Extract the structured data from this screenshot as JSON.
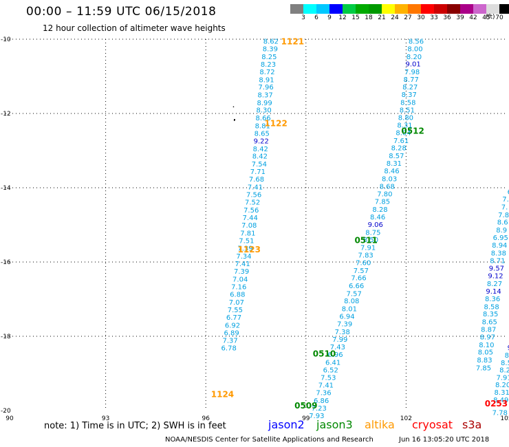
{
  "title": "00:00 – 11:59 UTC 06/15/2018",
  "subtitle": "12 hour collection of altimeter wave heights",
  "legend": {
    "colors": [
      "#808080",
      "#00ffff",
      "#00c8ff",
      "#0000ff",
      "#00cc44",
      "#00aa00",
      "#009900",
      "#ffff00",
      "#ffb300",
      "#ff7700",
      "#ff0000",
      "#cc0000",
      "#880000",
      "#aa0088",
      "#cc66cc",
      "#dddddd",
      "#000000"
    ],
    "labels": [
      "3",
      "6",
      "9",
      "12",
      "15",
      "18",
      "21",
      "24",
      "27",
      "30",
      "33",
      "36",
      "39",
      "42",
      "45",
      "70"
    ],
    "unit": "(ft)"
  },
  "map": {
    "lon_labels": [
      "90",
      "93",
      "96",
      "99",
      "102",
      "105"
    ],
    "lat_labels": [
      "-10",
      "-12",
      "-14",
      "-16",
      "-18",
      "-20"
    ]
  },
  "note": "note:  1) Time is in UTC;  2) SWH is in feet",
  "satellites": [
    {
      "name": "jason2",
      "color": "#0000ff"
    },
    {
      "name": "jason3",
      "color": "#008800"
    },
    {
      "name": "altika",
      "color": "#ff9900"
    },
    {
      "name": "cryosat",
      "color": "#ff0000"
    },
    {
      "name": "s3a",
      "color": "#aa0000"
    }
  ],
  "credit": "NOAA/NESDIS Center for Satellite Applications and Research",
  "timestamp": "Jun 16 13:05:20 UTC 2018",
  "tracks": [
    {
      "id": "altika",
      "color": "#ff9900",
      "labels": [
        {
          "text": "1121",
          "lon": 98.6,
          "lat": -10.05
        },
        {
          "text": "1122",
          "lon": 98.1,
          "lat": -12.25
        },
        {
          "text": "1123",
          "lon": 97.3,
          "lat": -15.65
        },
        {
          "text": "1124",
          "lon": 96.5,
          "lat": -19.55
        }
      ]
    },
    {
      "id": "jason3",
      "color": "#008800",
      "labels": [
        {
          "text": "0512",
          "lon": 102.2,
          "lat": -12.45
        },
        {
          "text": "0511",
          "lon": 100.8,
          "lat": -15.4
        },
        {
          "text": "0510",
          "lon": 99.55,
          "lat": -18.45
        },
        {
          "text": "0509",
          "lon": 99.0,
          "lat": -19.85
        }
      ]
    },
    {
      "id": "cryosat",
      "color": "#ff0000",
      "labels": [
        {
          "text": "0253",
          "lon": 104.7,
          "lat": -19.8
        }
      ]
    }
  ],
  "readings": [
    {
      "lon": 97.95,
      "lat": -10.05,
      "v": "8.62",
      "c": "#00a0e0"
    },
    {
      "lon": 97.93,
      "lat": -10.25,
      "v": "8.39",
      "c": "#00a0e0"
    },
    {
      "lon": 97.9,
      "lat": -10.46,
      "v": "8.25",
      "c": "#00a0e0"
    },
    {
      "lon": 97.87,
      "lat": -10.67,
      "v": "8.23",
      "c": "#00a0e0"
    },
    {
      "lon": 97.84,
      "lat": -10.87,
      "v": "8.72",
      "c": "#00a0e0"
    },
    {
      "lon": 97.82,
      "lat": -11.08,
      "v": "8.91",
      "c": "#00a0e0"
    },
    {
      "lon": 97.8,
      "lat": -11.28,
      "v": "7.96",
      "c": "#00a0e0"
    },
    {
      "lon": 97.78,
      "lat": -11.49,
      "v": "8.37",
      "c": "#00a0e0"
    },
    {
      "lon": 97.76,
      "lat": -11.7,
      "v": "8.99",
      "c": "#00a0e0"
    },
    {
      "lon": 97.74,
      "lat": -11.9,
      "v": "8.30",
      "c": "#00a0e0"
    },
    {
      "lon": 97.72,
      "lat": -12.11,
      "v": "8.66",
      "c": "#00a0e0"
    },
    {
      "lon": 97.7,
      "lat": -12.32,
      "v": "8.81",
      "c": "#00a0e0"
    },
    {
      "lon": 97.68,
      "lat": -12.53,
      "v": "8.65",
      "c": "#00a0e0"
    },
    {
      "lon": 97.66,
      "lat": -12.73,
      "v": "9.22",
      "c": "#0000cc"
    },
    {
      "lon": 97.64,
      "lat": -12.94,
      "v": "8.42",
      "c": "#00a0e0"
    },
    {
      "lon": 97.62,
      "lat": -13.14,
      "v": "8.42",
      "c": "#00a0e0"
    },
    {
      "lon": 97.6,
      "lat": -13.35,
      "v": "7.54",
      "c": "#00a0e0"
    },
    {
      "lon": 97.56,
      "lat": -13.56,
      "v": "7.71",
      "c": "#00a0e0"
    },
    {
      "lon": 97.52,
      "lat": -13.76,
      "v": "7.68",
      "c": "#00a0e0"
    },
    {
      "lon": 97.48,
      "lat": -13.97,
      "v": "7.41",
      "c": "#00a0e0"
    },
    {
      "lon": 97.44,
      "lat": -14.18,
      "v": "7.56",
      "c": "#00a0e0"
    },
    {
      "lon": 97.4,
      "lat": -14.38,
      "v": "7.52",
      "c": "#00a0e0"
    },
    {
      "lon": 97.36,
      "lat": -14.59,
      "v": "7.56",
      "c": "#00a0e0"
    },
    {
      "lon": 97.33,
      "lat": -14.8,
      "v": "7.44",
      "c": "#00a0e0"
    },
    {
      "lon": 97.3,
      "lat": -15.0,
      "v": "7.08",
      "c": "#00a0e0"
    },
    {
      "lon": 97.26,
      "lat": -15.21,
      "v": "7.81",
      "c": "#00a0e0"
    },
    {
      "lon": 97.22,
      "lat": -15.42,
      "v": "7.51",
      "c": "#00a0e0"
    },
    {
      "lon": 97.18,
      "lat": -15.62,
      "v": "7.39",
      "c": "#00a0e0"
    },
    {
      "lon": 97.14,
      "lat": -15.83,
      "v": "7.34",
      "c": "#00a0e0"
    },
    {
      "lon": 97.1,
      "lat": -16.04,
      "v": "7.41",
      "c": "#00a0e0"
    },
    {
      "lon": 97.07,
      "lat": -16.24,
      "v": "7.39",
      "c": "#00a0e0"
    },
    {
      "lon": 97.03,
      "lat": -16.45,
      "v": "7.04",
      "c": "#00a0e0"
    },
    {
      "lon": 96.99,
      "lat": -16.66,
      "v": "7.16",
      "c": "#00a0e0"
    },
    {
      "lon": 96.95,
      "lat": -16.86,
      "v": "6.88",
      "c": "#00a0e0"
    },
    {
      "lon": 96.92,
      "lat": -17.07,
      "v": "7.07",
      "c": "#00a0e0"
    },
    {
      "lon": 96.88,
      "lat": -17.28,
      "v": "7.55",
      "c": "#00a0e0"
    },
    {
      "lon": 96.84,
      "lat": -17.48,
      "v": "6.77",
      "c": "#00a0e0"
    },
    {
      "lon": 96.8,
      "lat": -17.69,
      "v": "6.92",
      "c": "#00a0e0"
    },
    {
      "lon": 96.77,
      "lat": -17.9,
      "v": "6.89",
      "c": "#00a0e0"
    },
    {
      "lon": 96.73,
      "lat": -18.1,
      "v": "7.37",
      "c": "#00a0e0"
    },
    {
      "lon": 96.69,
      "lat": -18.31,
      "v": "6.78",
      "c": "#00a0e0"
    },
    {
      "lon": 102.3,
      "lat": -10.05,
      "v": "8.56",
      "c": "#00a0e0"
    },
    {
      "lon": 102.27,
      "lat": -10.25,
      "v": "8.00",
      "c": "#00a0e0"
    },
    {
      "lon": 102.24,
      "lat": -10.46,
      "v": "8.20",
      "c": "#00a0e0"
    },
    {
      "lon": 102.21,
      "lat": -10.66,
      "v": "9.01",
      "c": "#0000cc"
    },
    {
      "lon": 102.18,
      "lat": -10.87,
      "v": "7.98",
      "c": "#00a0e0"
    },
    {
      "lon": 102.15,
      "lat": -11.07,
      "v": "8.77",
      "c": "#00a0e0"
    },
    {
      "lon": 102.12,
      "lat": -11.28,
      "v": "8.27",
      "c": "#00a0e0"
    },
    {
      "lon": 102.09,
      "lat": -11.48,
      "v": "8.37",
      "c": "#00a0e0"
    },
    {
      "lon": 102.06,
      "lat": -11.69,
      "v": "8.58",
      "c": "#00a0e0"
    },
    {
      "lon": 102.03,
      "lat": -11.9,
      "v": "8.51",
      "c": "#00a0e0"
    },
    {
      "lon": 101.99,
      "lat": -12.1,
      "v": "8.80",
      "c": "#00a0e0"
    },
    {
      "lon": 101.96,
      "lat": -12.31,
      "v": "8.31",
      "c": "#00a0e0"
    },
    {
      "lon": 101.92,
      "lat": -12.51,
      "v": "8.04",
      "c": "#00a0e0"
    },
    {
      "lon": 101.85,
      "lat": -12.72,
      "v": "7.61",
      "c": "#00a0e0"
    },
    {
      "lon": 101.78,
      "lat": -12.92,
      "v": "8.28",
      "c": "#00a0e0"
    },
    {
      "lon": 101.71,
      "lat": -13.13,
      "v": "8.57",
      "c": "#00a0e0"
    },
    {
      "lon": 101.64,
      "lat": -13.33,
      "v": "8.31",
      "c": "#00a0e0"
    },
    {
      "lon": 101.57,
      "lat": -13.54,
      "v": "8.46",
      "c": "#00a0e0"
    },
    {
      "lon": 101.5,
      "lat": -13.75,
      "v": "8.03",
      "c": "#00a0e0"
    },
    {
      "lon": 101.43,
      "lat": -13.95,
      "v": "8.68",
      "c": "#00a0e0"
    },
    {
      "lon": 101.36,
      "lat": -14.16,
      "v": "7.80",
      "c": "#00a0e0"
    },
    {
      "lon": 101.29,
      "lat": -14.36,
      "v": "7.85",
      "c": "#00a0e0"
    },
    {
      "lon": 101.22,
      "lat": -14.57,
      "v": "8.28",
      "c": "#00a0e0"
    },
    {
      "lon": 101.15,
      "lat": -14.78,
      "v": "8.46",
      "c": "#00a0e0"
    },
    {
      "lon": 101.08,
      "lat": -14.98,
      "v": "9.06",
      "c": "#0000cc"
    },
    {
      "lon": 101.01,
      "lat": -15.19,
      "v": "8.75",
      "c": "#00a0e0"
    },
    {
      "lon": 100.94,
      "lat": -15.39,
      "v": "8.50",
      "c": "#00a0e0"
    },
    {
      "lon": 100.86,
      "lat": -15.6,
      "v": "7.91",
      "c": "#00a0e0"
    },
    {
      "lon": 100.79,
      "lat": -15.81,
      "v": "7.83",
      "c": "#00a0e0"
    },
    {
      "lon": 100.72,
      "lat": -16.01,
      "v": "7.60",
      "c": "#00a0e0"
    },
    {
      "lon": 100.65,
      "lat": -16.22,
      "v": "7.57",
      "c": "#00a0e0"
    },
    {
      "lon": 100.58,
      "lat": -16.42,
      "v": "7.66",
      "c": "#00a0e0"
    },
    {
      "lon": 100.51,
      "lat": -16.63,
      "v": "6.66",
      "c": "#00a0e0"
    },
    {
      "lon": 100.44,
      "lat": -16.84,
      "v": "7.57",
      "c": "#00a0e0"
    },
    {
      "lon": 100.37,
      "lat": -17.04,
      "v": "8.08",
      "c": "#00a0e0"
    },
    {
      "lon": 100.3,
      "lat": -17.25,
      "v": "8.01",
      "c": "#00a0e0"
    },
    {
      "lon": 100.23,
      "lat": -17.45,
      "v": "6.94",
      "c": "#00a0e0"
    },
    {
      "lon": 100.16,
      "lat": -17.66,
      "v": "7.39",
      "c": "#00a0e0"
    },
    {
      "lon": 100.09,
      "lat": -17.87,
      "v": "7.38",
      "c": "#00a0e0"
    },
    {
      "lon": 100.02,
      "lat": -18.07,
      "v": "7.99",
      "c": "#00a0e0"
    },
    {
      "lon": 99.95,
      "lat": -18.28,
      "v": "7.43",
      "c": "#00a0e0"
    },
    {
      "lon": 99.88,
      "lat": -18.48,
      "v": "6.96",
      "c": "#00a0e0"
    },
    {
      "lon": 99.81,
      "lat": -18.69,
      "v": "6.41",
      "c": "#00a0e0"
    },
    {
      "lon": 99.74,
      "lat": -18.9,
      "v": "6.52",
      "c": "#00a0e0"
    },
    {
      "lon": 99.67,
      "lat": -19.1,
      "v": "7.53",
      "c": "#00a0e0"
    },
    {
      "lon": 99.6,
      "lat": -19.31,
      "v": "7.41",
      "c": "#00a0e0"
    },
    {
      "lon": 99.53,
      "lat": -19.51,
      "v": "7.36",
      "c": "#00a0e0"
    },
    {
      "lon": 99.46,
      "lat": -19.72,
      "v": "6.86",
      "c": "#00a0e0"
    },
    {
      "lon": 99.39,
      "lat": -19.93,
      "v": "7.23",
      "c": "#00a0e0"
    },
    {
      "lon": 99.32,
      "lat": -20.13,
      "v": "7.93",
      "c": "#00a0e0"
    },
    {
      "lon": 105.1,
      "lat": -14.1,
      "v": "6",
      "c": "#00a0e0"
    },
    {
      "lon": 104.98,
      "lat": -14.3,
      "v": "7.",
      "c": "#00a0e0"
    },
    {
      "lon": 104.95,
      "lat": -14.51,
      "v": "7.",
      "c": "#00a0e0"
    },
    {
      "lon": 104.92,
      "lat": -14.72,
      "v": "7.8",
      "c": "#00a0e0"
    },
    {
      "lon": 104.89,
      "lat": -14.92,
      "v": "8.6",
      "c": "#00a0e0"
    },
    {
      "lon": 104.86,
      "lat": -15.13,
      "v": "8.9",
      "c": "#00a0e0"
    },
    {
      "lon": 104.83,
      "lat": -15.33,
      "v": "6.95",
      "c": "#00a0e0"
    },
    {
      "lon": 104.8,
      "lat": -15.54,
      "v": "8.94",
      "c": "#00a0e0"
    },
    {
      "lon": 104.77,
      "lat": -15.75,
      "v": "8.38",
      "c": "#00a0e0"
    },
    {
      "lon": 104.74,
      "lat": -15.95,
      "v": "8.71",
      "c": "#00a0e0"
    },
    {
      "lon": 104.71,
      "lat": -16.16,
      "v": "9.57",
      "c": "#0000cc"
    },
    {
      "lon": 104.68,
      "lat": -16.36,
      "v": "9.12",
      "c": "#0000cc"
    },
    {
      "lon": 104.65,
      "lat": -16.57,
      "v": "8.27",
      "c": "#00a0e0"
    },
    {
      "lon": 104.62,
      "lat": -16.78,
      "v": "9.14",
      "c": "#0000cc"
    },
    {
      "lon": 104.59,
      "lat": -16.98,
      "v": "8.36",
      "c": "#00a0e0"
    },
    {
      "lon": 104.56,
      "lat": -17.19,
      "v": "8.58",
      "c": "#00a0e0"
    },
    {
      "lon": 104.53,
      "lat": -17.39,
      "v": "8.35",
      "c": "#00a0e0"
    },
    {
      "lon": 104.5,
      "lat": -17.6,
      "v": "8.65",
      "c": "#00a0e0"
    },
    {
      "lon": 104.47,
      "lat": -17.81,
      "v": "8.87",
      "c": "#00a0e0"
    },
    {
      "lon": 104.44,
      "lat": -18.01,
      "v": "8.97",
      "c": "#00a0e0"
    },
    {
      "lon": 104.41,
      "lat": -18.22,
      "v": "8.10",
      "c": "#00a0e0"
    },
    {
      "lon": 104.38,
      "lat": -18.42,
      "v": "8.05",
      "c": "#00a0e0"
    },
    {
      "lon": 104.35,
      "lat": -18.63,
      "v": "8.83",
      "c": "#00a0e0"
    },
    {
      "lon": 104.32,
      "lat": -18.84,
      "v": "7.85",
      "c": "#00a0e0"
    },
    {
      "lon": 105.1,
      "lat": -18.3,
      "v": "9",
      "c": "#0000cc"
    },
    {
      "lon": 105.05,
      "lat": -18.5,
      "v": "8.",
      "c": "#00a0e0"
    },
    {
      "lon": 105.0,
      "lat": -18.7,
      "v": "8.5",
      "c": "#00a0e0"
    },
    {
      "lon": 104.96,
      "lat": -18.9,
      "v": "8.2",
      "c": "#00a0e0"
    },
    {
      "lon": 104.93,
      "lat": -19.1,
      "v": "7.91",
      "c": "#00a0e0"
    },
    {
      "lon": 104.9,
      "lat": -19.3,
      "v": "8.20",
      "c": "#00a0e0"
    },
    {
      "lon": 104.87,
      "lat": -19.5,
      "v": "8.31",
      "c": "#00a0e0"
    },
    {
      "lon": 104.84,
      "lat": -19.7,
      "v": "8.49",
      "c": "#00a0e0"
    },
    {
      "lon": 104.81,
      "lat": -20.05,
      "v": "7.78",
      "c": "#00a0e0"
    }
  ]
}
